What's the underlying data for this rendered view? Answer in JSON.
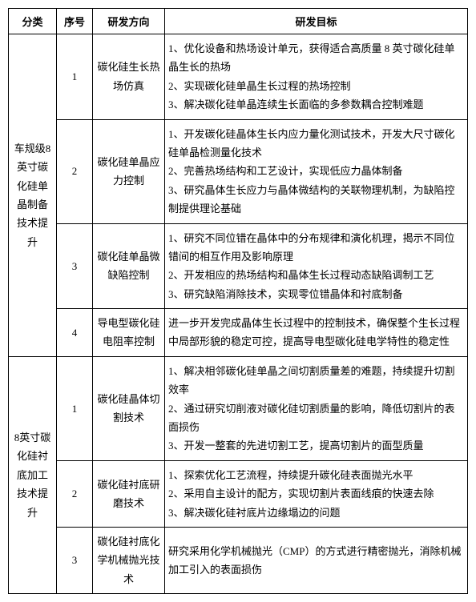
{
  "headers": {
    "category": "分类",
    "seq": "序号",
    "direction": "研发方向",
    "goal": "研发目标"
  },
  "categories": [
    {
      "name": "车规级8英寸碳化硅单晶制备技术提升",
      "rows": [
        {
          "seq": "1",
          "direction": "碳化硅生长热场仿真",
          "goals": [
            "1、优化设备和热场设计单元，获得适合高质量 8 英寸碳化硅单晶生长的热场",
            "2、实现碳化硅单晶生长过程的热场控制",
            "3、解决碳化硅单晶连续生长面临的多参数耦合控制难题"
          ]
        },
        {
          "seq": "2",
          "direction": "碳化硅单晶应力控制",
          "goals": [
            "1、开发碳化硅晶体生长内应力量化测试技术，开发大尺寸碳化硅单晶检测量化技术",
            "2、完善热场结构和工艺设计，实现低应力晶体制备",
            "3、研究晶体生长应力与晶体微结构的关联物理机制，为缺陷控制提供理论基础"
          ]
        },
        {
          "seq": "3",
          "direction": "碳化硅单晶微缺陷控制",
          "goals": [
            "1、研究不同位错在晶体中的分布规律和演化机理，揭示不同位错间的相互作用及影响原理",
            "2、开发相应的热场结构和晶体生长过程动态缺陷调制工艺",
            "3、研究缺陷消除技术，实现零位错晶体和衬底制备"
          ]
        },
        {
          "seq": "4",
          "direction": "导电型碳化硅电阻率控制",
          "goals": [
            "进一步开发完成晶体生长过程中的控制技术，确保整个生长过程中局部形貌的稳定可控，提高导电型碳化硅电学特性的稳定性"
          ]
        }
      ]
    },
    {
      "name": "8英寸碳化硅衬底加工技术提升",
      "rows": [
        {
          "seq": "1",
          "direction": "碳化硅晶体切割技术",
          "goals": [
            "1、解决相邻碳化硅单晶之间切割质量差的难题，持续提升切割效率",
            "2、通过研究切削液对碳化硅切割质量的影响，降低切割片的表面损伤",
            "3、开发一整套的先进切割工艺，提高切割片的面型质量"
          ]
        },
        {
          "seq": "2",
          "direction": "碳化硅衬底研磨技术",
          "goals": [
            "1、探索优化工艺流程，持续提升碳化硅表面抛光水平",
            "2、采用自主设计的配方，实现切割片表面线痕的快速去除",
            "3、解决碳化硅衬底片边缘塌边的问题"
          ]
        },
        {
          "seq": "3",
          "direction": "碳化硅衬底化学机械抛光技术",
          "goals": [
            "研究采用化学机械抛光（CMP）的方式进行精密抛光，消除机械加工引入的表面损伤"
          ]
        }
      ]
    }
  ]
}
